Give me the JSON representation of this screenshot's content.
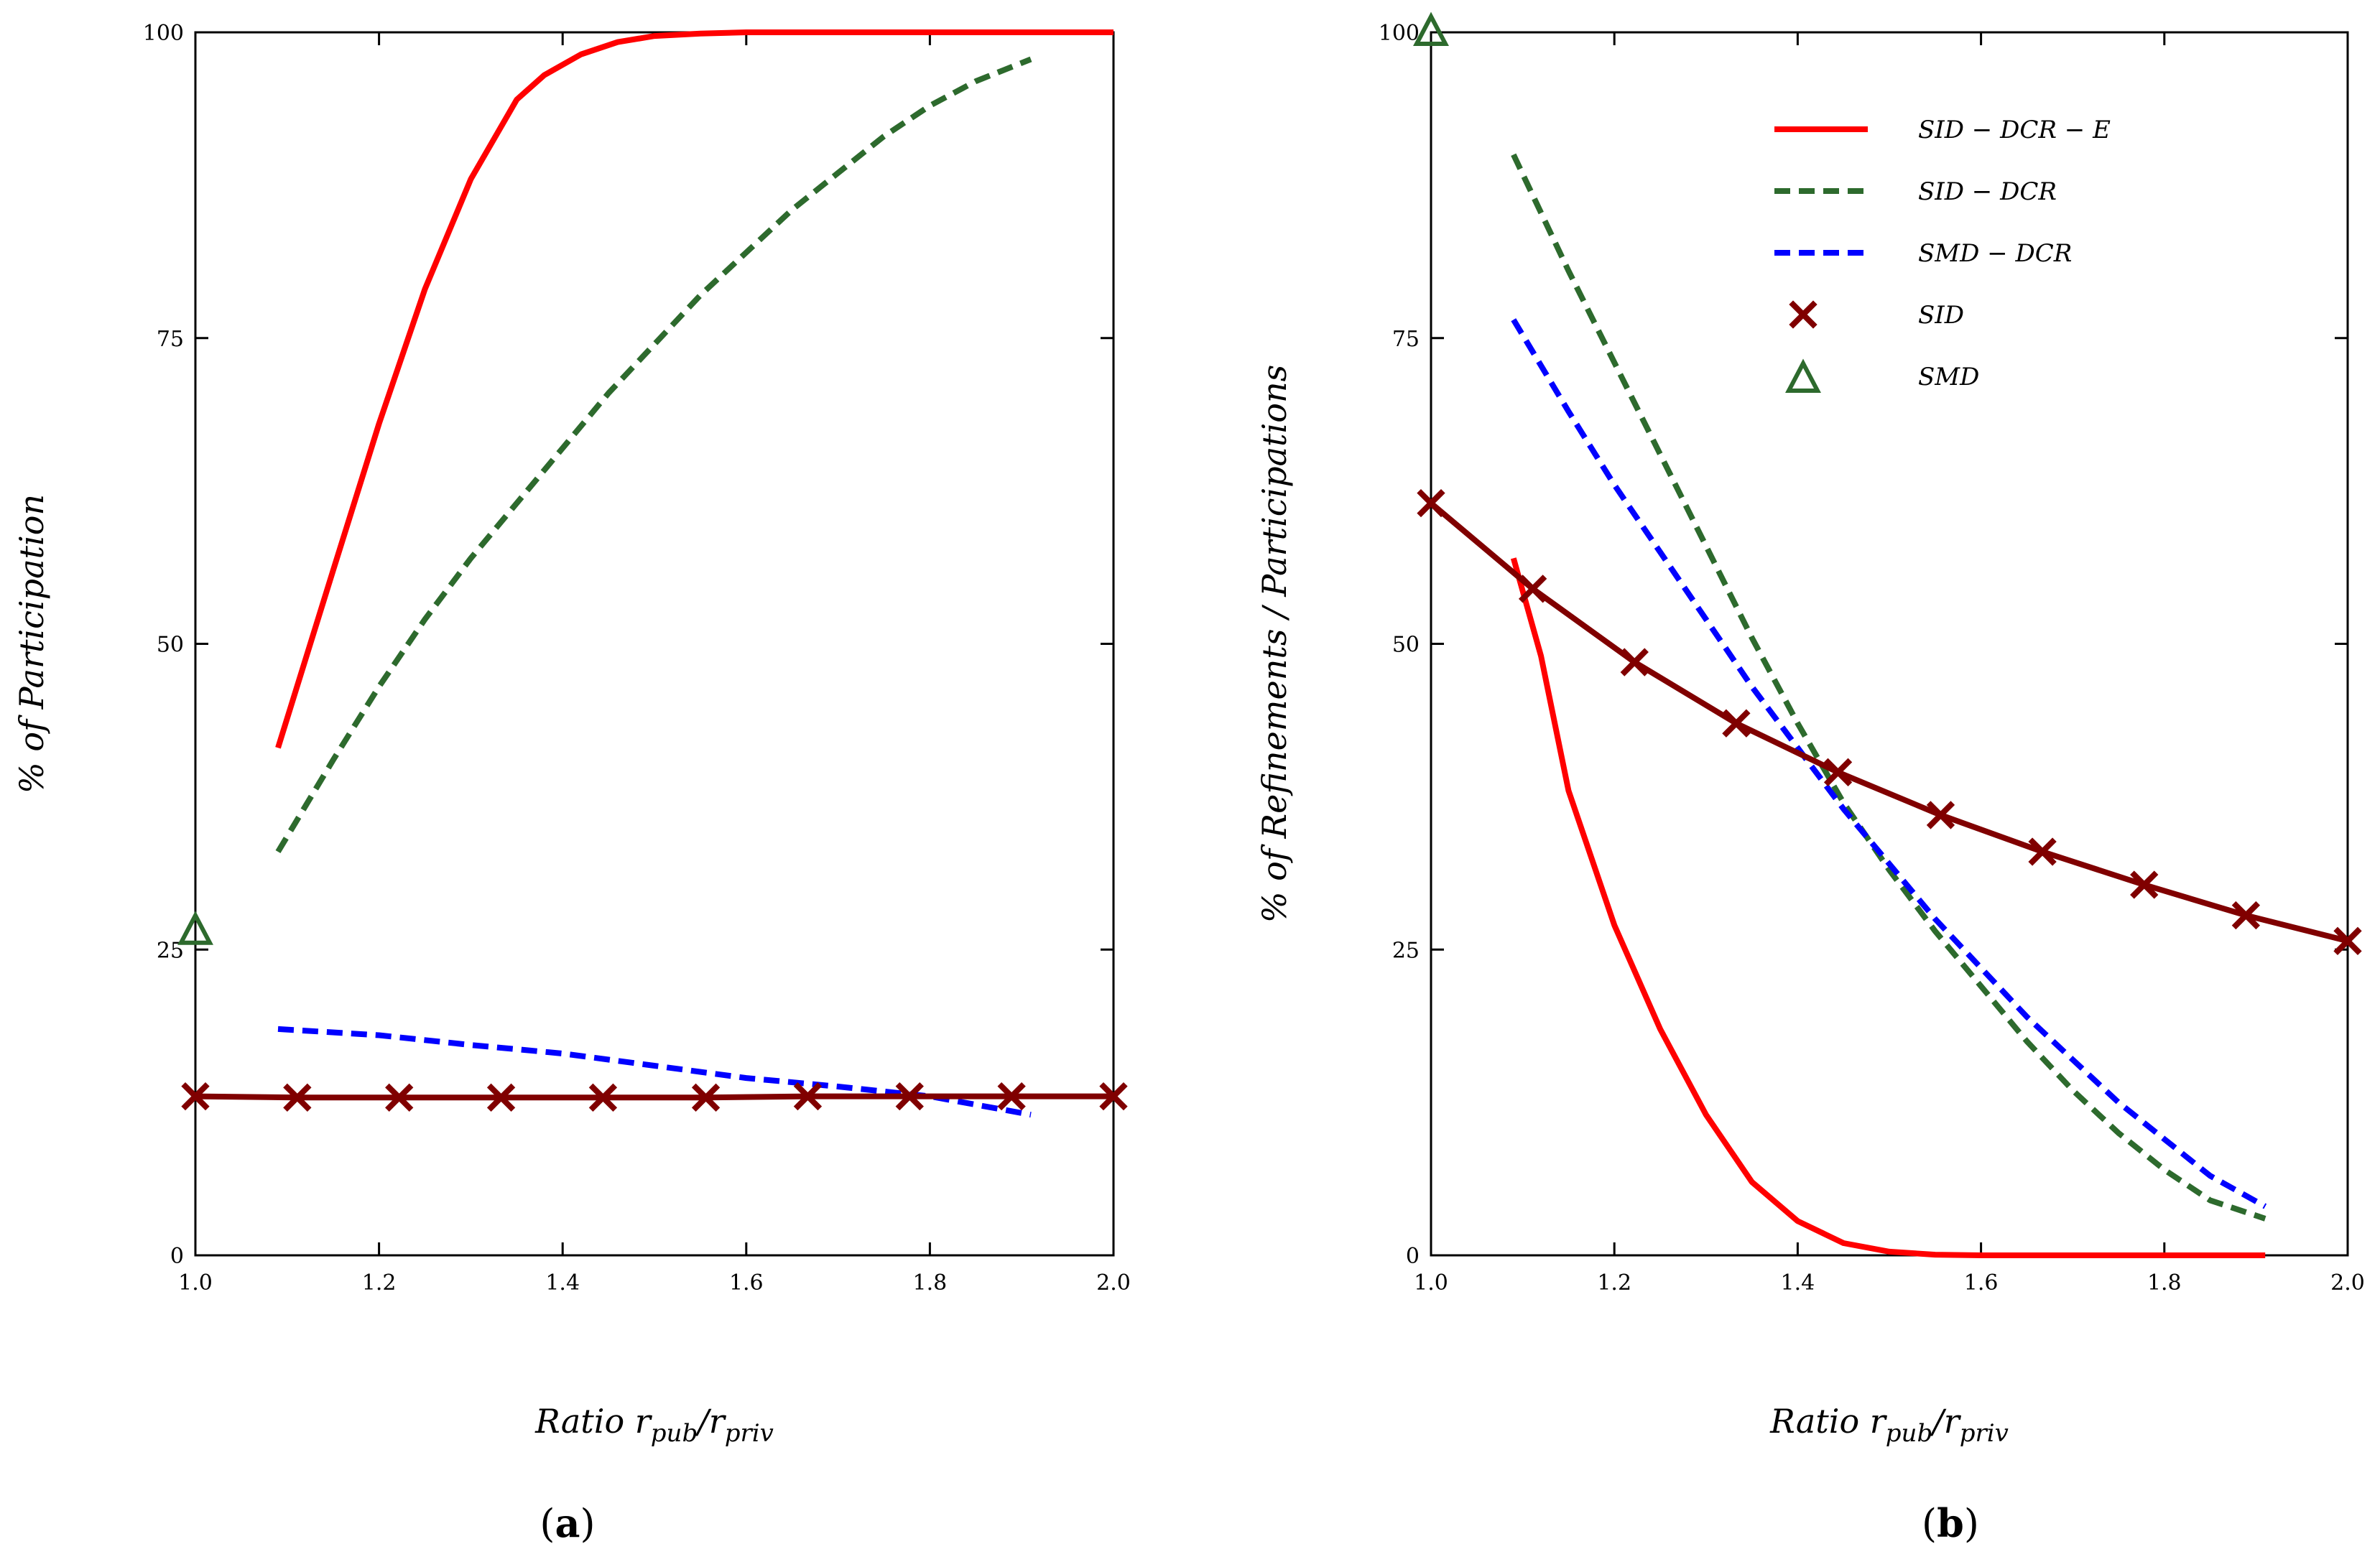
{
  "chart_data": [
    {
      "type": "line",
      "panel_label": "a",
      "xlabel": "Ratio r_pub/r_priv",
      "xlabel_parts": {
        "main": "Ratio r",
        "sub1": "pub",
        "mid": "/r",
        "sub2": "priv"
      },
      "ylabel": "% of Participation",
      "xlim": [
        1.0,
        2.0
      ],
      "ylim": [
        0,
        100
      ],
      "xticks": [
        1.0,
        1.2,
        1.4,
        1.6,
        1.8,
        2.0
      ],
      "xtick_labels": [
        "1.0",
        "1.2",
        "1.4",
        "1.6",
        "1.8",
        "2.0"
      ],
      "yticks": [
        0,
        25,
        50,
        75,
        100
      ],
      "ytick_labels": [
        "0",
        "25",
        "50",
        "75",
        "100"
      ],
      "grid": false,
      "series": [
        {
          "name": "SID − DCR − E",
          "color": "#ff0000",
          "style": "solid",
          "x": [
            1.09,
            1.15,
            1.2,
            1.25,
            1.3,
            1.35,
            1.38,
            1.42,
            1.46,
            1.5,
            1.55,
            1.6,
            1.7,
            2.0
          ],
          "y": [
            41.5,
            56,
            68,
            79,
            88,
            94.5,
            96.5,
            98.2,
            99.2,
            99.7,
            99.9,
            100,
            100,
            100
          ]
        },
        {
          "name": "SID − DCR",
          "color": "#2d6a2d",
          "style": "dashed",
          "x": [
            1.09,
            1.15,
            1.2,
            1.25,
            1.3,
            1.35,
            1.4,
            1.45,
            1.5,
            1.55,
            1.6,
            1.65,
            1.7,
            1.75,
            1.8,
            1.85,
            1.91
          ],
          "y": [
            33,
            40.5,
            46.5,
            52,
            57,
            61.5,
            66,
            70.5,
            74.5,
            78.5,
            82,
            85.5,
            88.5,
            91.5,
            94,
            96,
            97.8
          ]
        },
        {
          "name": "SMD − DCR",
          "color": "#0000ff",
          "style": "dashed",
          "x": [
            1.09,
            1.2,
            1.3,
            1.4,
            1.5,
            1.6,
            1.7,
            1.8,
            1.91
          ],
          "y": [
            18.5,
            18,
            17.2,
            16.5,
            15.5,
            14.5,
            13.8,
            13,
            11.5
          ]
        },
        {
          "name": "SID",
          "color": "#800000",
          "style": "solid",
          "marker": "x",
          "x": [
            1.0,
            1.111,
            1.222,
            1.333,
            1.444,
            1.556,
            1.667,
            1.778,
            1.889,
            2.0
          ],
          "y": [
            13,
            12.9,
            12.9,
            12.9,
            12.9,
            12.9,
            13,
            13,
            13,
            13
          ]
        },
        {
          "name": "SMD",
          "color": "#2d6a2d",
          "style": "none",
          "marker": "triangle",
          "x": [
            1.0
          ],
          "y": [
            26.5
          ]
        }
      ]
    },
    {
      "type": "line",
      "panel_label": "b",
      "xlabel": "Ratio r_pub/r_priv",
      "xlabel_parts": {
        "main": "Ratio r",
        "sub1": "pub",
        "mid": "/r",
        "sub2": "priv"
      },
      "ylabel": "% of Refinements / Participations",
      "xlim": [
        1.0,
        2.0
      ],
      "ylim": [
        0,
        100
      ],
      "xticks": [
        1.0,
        1.2,
        1.4,
        1.6,
        1.8,
        2.0
      ],
      "xtick_labels": [
        "1.0",
        "1.2",
        "1.4",
        "1.6",
        "1.8",
        "2.0"
      ],
      "yticks": [
        0,
        25,
        50,
        75,
        100
      ],
      "ytick_labels": [
        "0",
        "25",
        "50",
        "75",
        "100"
      ],
      "grid": false,
      "legend_position": "top-right",
      "legend": [
        {
          "label": "SID − DCR − E",
          "color": "#ff0000",
          "style": "solid"
        },
        {
          "label": "SID − DCR",
          "color": "#2d6a2d",
          "style": "dashed"
        },
        {
          "label": "SMD − DCR",
          "color": "#0000ff",
          "style": "dashed"
        },
        {
          "label": "SID",
          "color": "#800000",
          "style": "marker-x"
        },
        {
          "label": "SMD",
          "color": "#2d6a2d",
          "style": "marker-triangle"
        }
      ],
      "series": [
        {
          "name": "SID − DCR − E",
          "color": "#ff0000",
          "style": "solid",
          "x": [
            1.09,
            1.12,
            1.15,
            1.2,
            1.25,
            1.3,
            1.35,
            1.4,
            1.45,
            1.5,
            1.55,
            1.6,
            1.7,
            1.8,
            1.91
          ],
          "y": [
            57,
            49,
            38,
            27,
            18.5,
            11.5,
            6,
            2.8,
            1,
            0.3,
            0.05,
            0,
            0,
            0,
            0
          ]
        },
        {
          "name": "SID − DCR",
          "color": "#2d6a2d",
          "style": "dashed",
          "x": [
            1.09,
            1.15,
            1.2,
            1.25,
            1.3,
            1.35,
            1.4,
            1.45,
            1.5,
            1.55,
            1.6,
            1.65,
            1.7,
            1.75,
            1.8,
            1.85,
            1.91
          ],
          "y": [
            90,
            80.5,
            73,
            65.5,
            58,
            50.5,
            43.5,
            37,
            31.5,
            26.5,
            22,
            17.5,
            13.5,
            10,
            7,
            4.5,
            3
          ]
        },
        {
          "name": "SMD − DCR",
          "color": "#0000ff",
          "style": "dashed",
          "x": [
            1.09,
            1.15,
            1.2,
            1.25,
            1.3,
            1.35,
            1.4,
            1.45,
            1.5,
            1.55,
            1.6,
            1.65,
            1.7,
            1.75,
            1.8,
            1.85,
            1.91
          ],
          "y": [
            76.5,
            69,
            63,
            57.5,
            52,
            46.5,
            41.5,
            36.5,
            32,
            27.5,
            23.5,
            19.5,
            16,
            12.5,
            9.5,
            6.5,
            4
          ]
        },
        {
          "name": "SID",
          "color": "#800000",
          "style": "solid",
          "marker": "x",
          "x": [
            1.0,
            1.111,
            1.222,
            1.333,
            1.444,
            1.556,
            1.667,
            1.778,
            1.889,
            2.0
          ],
          "y": [
            61.5,
            54.5,
            48.5,
            43.5,
            39.5,
            36,
            33,
            30.3,
            27.8,
            25.7
          ]
        },
        {
          "name": "SMD",
          "color": "#2d6a2d",
          "style": "none",
          "marker": "triangle",
          "x": [
            1.0
          ],
          "y": [
            100
          ]
        }
      ]
    }
  ]
}
